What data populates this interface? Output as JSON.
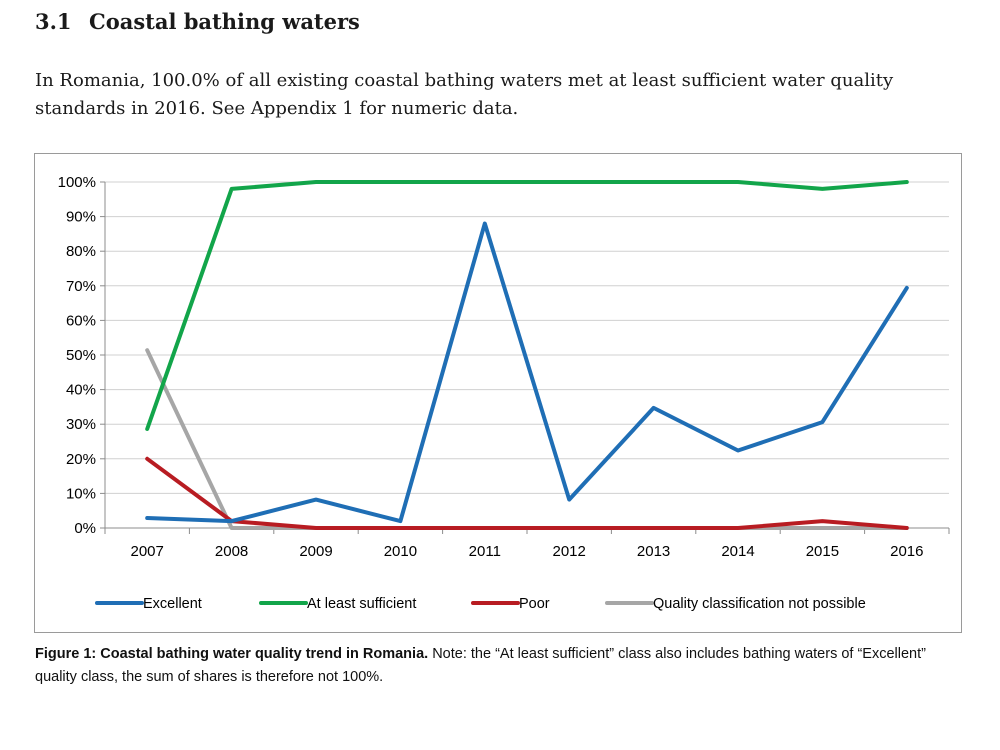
{
  "section": {
    "number": "3.1",
    "title": "Coastal bathing waters"
  },
  "intro_text": "In Romania, 100.0% of all existing coastal bathing waters met at least sufficient water quality standards in 2016. See Appendix 1 for numeric data.",
  "caption": {
    "bold": "Figure 1: Coastal bathing water quality trend in Romania.",
    "text": " Note: the “At least sufficient” class also includes bathing waters of “Excellent” quality class, the sum of shares is therefore not 100%."
  },
  "chart_data": {
    "type": "line",
    "x": [
      "2007",
      "2008",
      "2009",
      "2010",
      "2011",
      "2012",
      "2013",
      "2014",
      "2015",
      "2016"
    ],
    "ylim": [
      0,
      100
    ],
    "yticks": [
      0,
      10,
      20,
      30,
      40,
      50,
      60,
      70,
      80,
      90,
      100
    ],
    "ytick_labels": [
      "0%",
      "10%",
      "20%",
      "30%",
      "40%",
      "50%",
      "60%",
      "70%",
      "80%",
      "90%",
      "100%"
    ],
    "grid": true,
    "legend_position": "bottom",
    "series": [
      {
        "name": "Excellent",
        "color": "#1f6eb5",
        "values": [
          2.9,
          2.0,
          8.2,
          2.0,
          88.0,
          8.2,
          34.7,
          22.4,
          30.6,
          69.4
        ]
      },
      {
        "name": "At least sufficient",
        "color": "#12a54a",
        "values": [
          28.6,
          98.0,
          100.0,
          100.0,
          100.0,
          100.0,
          100.0,
          100.0,
          98.0,
          100.0
        ]
      },
      {
        "name": "Poor",
        "color": "#b81c22",
        "values": [
          20.0,
          2.0,
          0.0,
          0.0,
          0.0,
          0.0,
          0.0,
          0.0,
          2.0,
          0.0
        ]
      },
      {
        "name": "Quality classification not possible",
        "color": "#a6a6a6",
        "values": [
          51.4,
          0.0,
          0.0,
          0.0,
          0.0,
          0.0,
          0.0,
          0.0,
          0.0,
          0.0
        ]
      }
    ]
  }
}
